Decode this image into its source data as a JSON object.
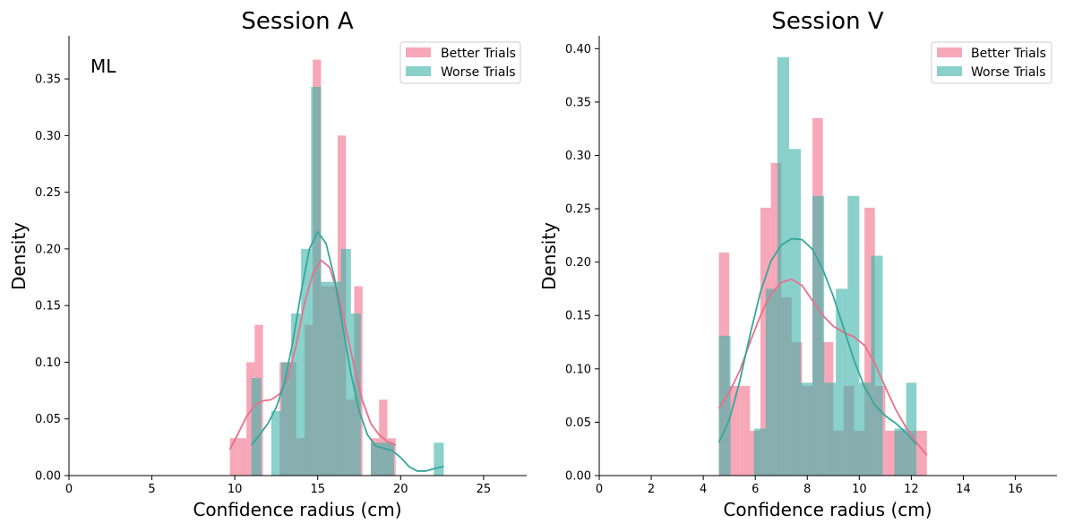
{
  "colors": {
    "better": "#f37a92",
    "worse": "#3bb2a6",
    "better_line": "#e8708a",
    "worse_line": "#35a79b"
  },
  "chart_data": [
    {
      "type": "bar",
      "title": "Session A",
      "xlabel": "Confidence radius (cm)",
      "ylabel": "Density",
      "annotation": "ML",
      "legend_position": "top-right",
      "grid": false,
      "xlim": [
        0,
        27.6
      ],
      "ylim": [
        0,
        0.388
      ],
      "xticks": [
        0,
        5,
        10,
        15,
        20,
        25
      ],
      "yticks": [
        0.0,
        0.05,
        0.1,
        0.15,
        0.2,
        0.25,
        0.3,
        0.35
      ],
      "series": [
        {
          "name": "Better Trials",
          "color_key": "better",
          "bins": [
            [
              9.7,
              10.2,
              0.033
            ],
            [
              10.2,
              10.7,
              0.033
            ],
            [
              10.7,
              11.2,
              0.1
            ],
            [
              11.2,
              11.7,
              0.133
            ],
            [
              12.7,
              13.2,
              0.1
            ],
            [
              13.2,
              13.7,
              0.1
            ],
            [
              13.7,
              14.2,
              0.033
            ],
            [
              14.2,
              14.7,
              0.133
            ],
            [
              14.7,
              15.2,
              0.367
            ],
            [
              15.2,
              15.7,
              0.167
            ],
            [
              15.7,
              16.2,
              0.167
            ],
            [
              16.2,
              16.7,
              0.3
            ],
            [
              16.7,
              17.2,
              0.067
            ],
            [
              17.2,
              17.7,
              0.167
            ],
            [
              18.2,
              18.7,
              0.033
            ],
            [
              18.7,
              19.2,
              0.067
            ],
            [
              19.2,
              19.7,
              0.033
            ]
          ],
          "kde": [
            [
              9.7,
              0.023
            ],
            [
              10.2,
              0.037
            ],
            [
              10.7,
              0.052
            ],
            [
              11.2,
              0.062
            ],
            [
              11.7,
              0.066
            ],
            [
              12.2,
              0.067
            ],
            [
              12.7,
              0.072
            ],
            [
              13.2,
              0.087
            ],
            [
              13.7,
              0.115
            ],
            [
              14.2,
              0.152
            ],
            [
              14.7,
              0.178
            ],
            [
              15.2,
              0.19
            ],
            [
              15.7,
              0.184
            ],
            [
              16.2,
              0.162
            ],
            [
              16.7,
              0.13
            ],
            [
              17.2,
              0.096
            ],
            [
              17.7,
              0.066
            ],
            [
              18.2,
              0.046
            ],
            [
              18.7,
              0.036
            ],
            [
              19.2,
              0.03
            ],
            [
              19.7,
              0.027
            ]
          ]
        },
        {
          "name": "Worse Trials",
          "color_key": "worse",
          "bins": [
            [
              11.0,
              11.6,
              0.086
            ],
            [
              12.2,
              12.8,
              0.057
            ],
            [
              12.8,
              13.4,
              0.1
            ],
            [
              13.4,
              14.0,
              0.143
            ],
            [
              14.0,
              14.6,
              0.2
            ],
            [
              14.6,
              15.2,
              0.343
            ],
            [
              15.2,
              15.8,
              0.171
            ],
            [
              15.8,
              16.4,
              0.171
            ],
            [
              16.4,
              17.0,
              0.2
            ],
            [
              17.0,
              17.6,
              0.143
            ],
            [
              18.2,
              18.8,
              0.029
            ],
            [
              18.8,
              19.4,
              0.029
            ],
            [
              19.4,
              19.6,
              0.029
            ],
            [
              22.0,
              22.6,
              0.029
            ]
          ],
          "kde": [
            [
              11.0,
              0.027
            ],
            [
              11.5,
              0.036
            ],
            [
              12.0,
              0.046
            ],
            [
              12.5,
              0.06
            ],
            [
              13.0,
              0.082
            ],
            [
              13.5,
              0.118
            ],
            [
              14.0,
              0.162
            ],
            [
              14.5,
              0.2
            ],
            [
              15.0,
              0.215
            ],
            [
              15.5,
              0.205
            ],
            [
              16.0,
              0.175
            ],
            [
              16.5,
              0.132
            ],
            [
              17.0,
              0.09
            ],
            [
              17.5,
              0.057
            ],
            [
              18.0,
              0.036
            ],
            [
              18.5,
              0.026
            ],
            [
              19.0,
              0.024
            ],
            [
              19.5,
              0.022
            ],
            [
              20.0,
              0.016
            ],
            [
              20.5,
              0.008
            ],
            [
              21.0,
              0.004
            ],
            [
              21.5,
              0.004
            ],
            [
              22.0,
              0.006
            ],
            [
              22.6,
              0.008
            ]
          ]
        }
      ]
    },
    {
      "type": "bar",
      "title": "Session V",
      "xlabel": "Confidence radius (cm)",
      "ylabel": "Density",
      "legend_position": "top-right",
      "grid": false,
      "xlim": [
        0,
        17.6
      ],
      "ylim": [
        0,
        0.412
      ],
      "xticks": [
        0,
        2,
        4,
        6,
        8,
        10,
        12,
        14,
        16
      ],
      "yticks": [
        0.0,
        0.05,
        0.1,
        0.15,
        0.2,
        0.25,
        0.3,
        0.35,
        0.4
      ],
      "series": [
        {
          "name": "Better Trials",
          "color_key": "better",
          "bins": [
            [
              4.6,
              5.0,
              0.209
            ],
            [
              5.0,
              5.4,
              0.084
            ],
            [
              5.4,
              5.8,
              0.084
            ],
            [
              5.8,
              6.2,
              0.042
            ],
            [
              6.2,
              6.6,
              0.251
            ],
            [
              6.6,
              7.0,
              0.293
            ],
            [
              7.0,
              7.4,
              0.167
            ],
            [
              7.4,
              7.8,
              0.125
            ],
            [
              7.8,
              8.2,
              0.084
            ],
            [
              8.2,
              8.6,
              0.335
            ],
            [
              8.6,
              9.0,
              0.125
            ],
            [
              9.0,
              9.4,
              0.042
            ],
            [
              9.4,
              9.8,
              0.084
            ],
            [
              9.8,
              10.2,
              0.042
            ],
            [
              10.2,
              10.6,
              0.251
            ],
            [
              10.6,
              11.0,
              0.084
            ],
            [
              11.0,
              11.4,
              0.042
            ],
            [
              11.4,
              11.8,
              0.042
            ],
            [
              11.8,
              12.2,
              0.042
            ],
            [
              12.2,
              12.6,
              0.042
            ]
          ],
          "kde": [
            [
              4.6,
              0.063
            ],
            [
              5.0,
              0.078
            ],
            [
              5.4,
              0.098
            ],
            [
              5.8,
              0.125
            ],
            [
              6.2,
              0.15
            ],
            [
              6.6,
              0.17
            ],
            [
              7.0,
              0.181
            ],
            [
              7.4,
              0.184
            ],
            [
              7.8,
              0.178
            ],
            [
              8.2,
              0.164
            ],
            [
              8.6,
              0.15
            ],
            [
              9.0,
              0.14
            ],
            [
              9.4,
              0.134
            ],
            [
              9.8,
              0.13
            ],
            [
              10.2,
              0.122
            ],
            [
              10.6,
              0.105
            ],
            [
              11.0,
              0.083
            ],
            [
              11.4,
              0.062
            ],
            [
              11.8,
              0.045
            ],
            [
              12.2,
              0.031
            ],
            [
              12.6,
              0.019
            ]
          ]
        },
        {
          "name": "Worse Trials",
          "color_key": "worse",
          "bins": [
            [
              4.6,
              5.05,
              0.131
            ],
            [
              5.05,
              5.5,
              0.0
            ],
            [
              5.5,
              5.95,
              0.0
            ],
            [
              5.95,
              6.4,
              0.044
            ],
            [
              6.4,
              6.85,
              0.175
            ],
            [
              6.85,
              7.3,
              0.392
            ],
            [
              7.3,
              7.75,
              0.306
            ],
            [
              7.75,
              8.2,
              0.087
            ],
            [
              8.2,
              8.65,
              0.262
            ],
            [
              8.65,
              9.1,
              0.087
            ],
            [
              9.1,
              9.55,
              0.175
            ],
            [
              9.55,
              10.0,
              0.262
            ],
            [
              10.0,
              10.45,
              0.087
            ],
            [
              10.45,
              10.9,
              0.206
            ],
            [
              10.9,
              11.35,
              0.0
            ],
            [
              11.35,
              11.8,
              0.044
            ],
            [
              11.8,
              12.2,
              0.087
            ]
          ],
          "kde": [
            [
              4.6,
              0.031
            ],
            [
              5.0,
              0.052
            ],
            [
              5.4,
              0.088
            ],
            [
              5.8,
              0.132
            ],
            [
              6.2,
              0.172
            ],
            [
              6.6,
              0.201
            ],
            [
              7.0,
              0.216
            ],
            [
              7.4,
              0.222
            ],
            [
              7.8,
              0.221
            ],
            [
              8.2,
              0.212
            ],
            [
              8.6,
              0.193
            ],
            [
              9.0,
              0.168
            ],
            [
              9.4,
              0.138
            ],
            [
              9.8,
              0.108
            ],
            [
              10.2,
              0.083
            ],
            [
              10.6,
              0.066
            ],
            [
              11.0,
              0.056
            ],
            [
              11.4,
              0.049
            ],
            [
              11.8,
              0.04
            ],
            [
              12.2,
              0.029
            ]
          ]
        }
      ]
    }
  ]
}
